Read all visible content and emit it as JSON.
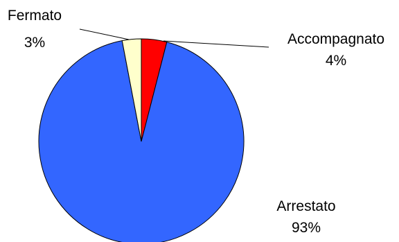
{
  "chart_data": {
    "type": "pie",
    "slices": [
      {
        "label": "Accompagnato",
        "percent_label": "4%",
        "value": 4,
        "color": "#ff0000"
      },
      {
        "label": "Arrestato",
        "percent_label": "93%",
        "value": 93,
        "color": "#3366ff"
      },
      {
        "label": "Fermato",
        "percent_label": "3%",
        "value": 3,
        "color": "#ffffcc"
      }
    ]
  }
}
